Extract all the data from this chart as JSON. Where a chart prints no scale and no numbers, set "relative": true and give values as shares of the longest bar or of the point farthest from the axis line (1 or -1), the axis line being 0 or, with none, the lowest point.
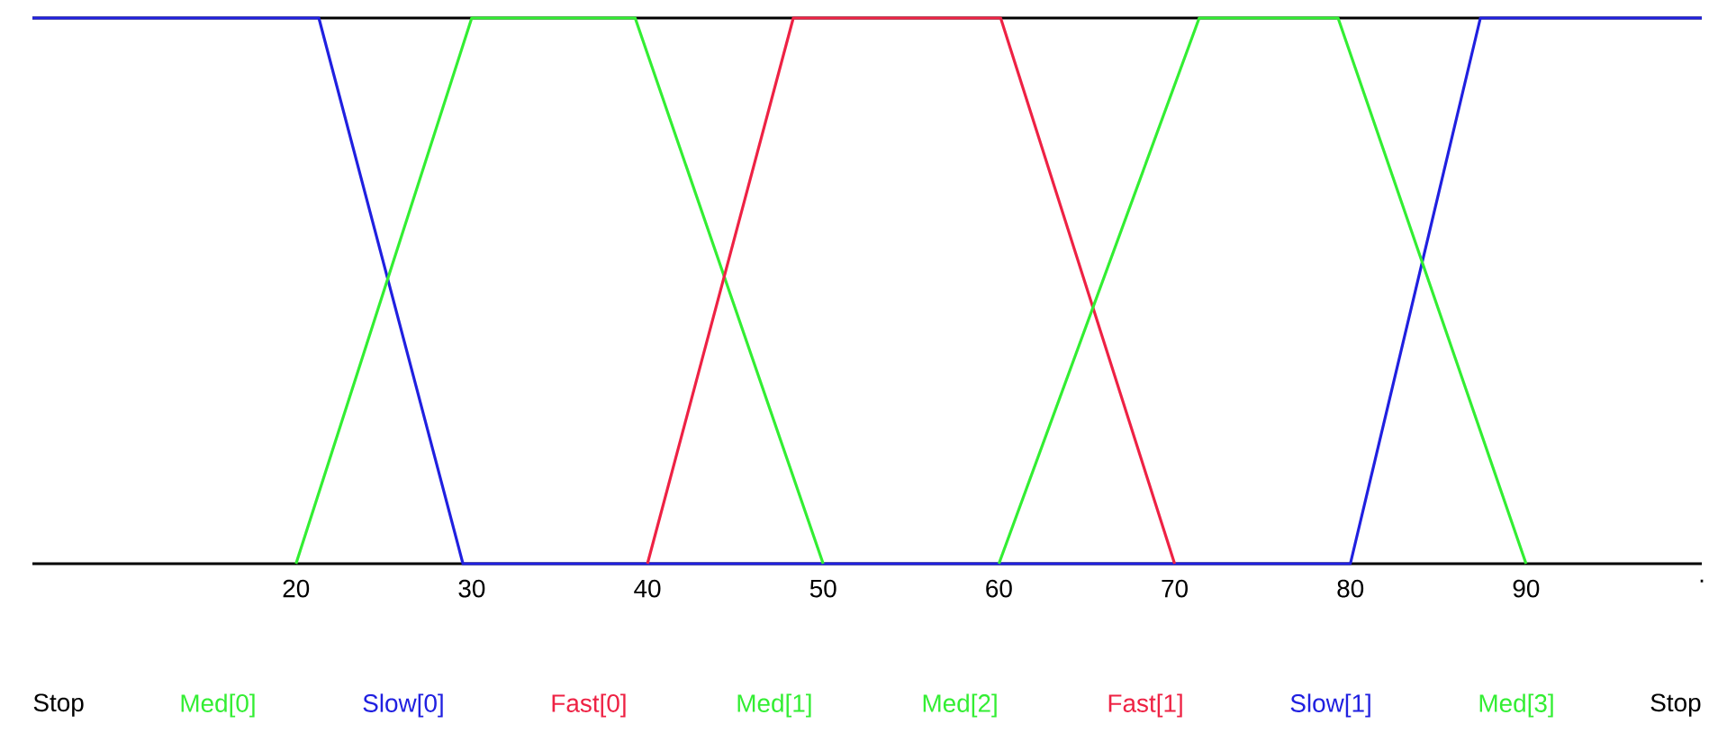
{
  "chart_data": {
    "type": "line",
    "relative": true,
    "xlim": [
      5,
      100
    ],
    "xticks": [
      20,
      30,
      40,
      50,
      60,
      70,
      80,
      90,
      {
        "value": 100,
        "label": "."
      }
    ],
    "series": [
      {
        "color": "#2020e0",
        "x": [
          5,
          21.3,
          29.5,
          80,
          87.4,
          100
        ],
        "values": [
          1,
          1,
          0,
          0,
          1,
          1
        ]
      },
      {
        "color": "#33ee33",
        "x": [
          20,
          30,
          39.3,
          50
        ],
        "values": [
          0,
          1,
          1,
          0
        ]
      },
      {
        "color": "#ee2244",
        "x": [
          40,
          48.3,
          60.1,
          70
        ],
        "values": [
          0,
          1,
          1,
          0
        ]
      },
      {
        "color": "#33ee33",
        "x": [
          60,
          71.4,
          79.3,
          90
        ],
        "values": [
          0,
          1,
          1,
          0
        ]
      }
    ],
    "annotations": [
      "Stop",
      "Med[0]",
      "Slow[0]",
      "Fast[0]",
      "Med[1]",
      "Med[2]",
      "Fast[1]",
      "Slow[1]",
      "Med[3]",
      "Stop"
    ]
  }
}
